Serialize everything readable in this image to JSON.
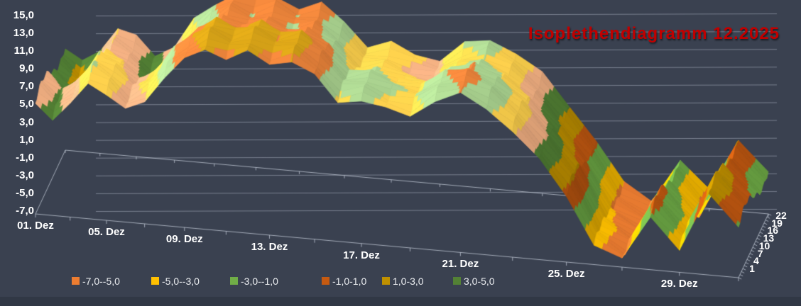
{
  "title": "Isoplethendiagramm 12.2025",
  "colors": {
    "background": "#3A4150",
    "page": "#333B48",
    "title": "#C00000",
    "gridline": "#ADB5C3",
    "axis_line": "#BEC5D2",
    "label": "#FFFFFF"
  },
  "chart_data": {
    "type": "surface",
    "title": "Isoplethendiagramm 12.2025",
    "x_axis": {
      "tick_labels": [
        "01. Dez",
        "05. Dez",
        "09. Dez",
        "13. Dez",
        "17. Dez",
        "21. Dez",
        "25. Dez",
        "29. Dez"
      ],
      "tick_days": [
        1,
        5,
        9,
        13,
        17,
        21,
        25,
        29
      ],
      "days_total": 31
    },
    "value_axis": {
      "tick_labels": [
        "15,0",
        "13,0",
        "11,0",
        "9,0",
        "7,0",
        "5,0",
        "3,0",
        "1,0",
        "-1,0",
        "-3,0",
        "-5,0",
        "-7,0"
      ],
      "min": -7,
      "max": 15,
      "band_size": 2
    },
    "depth_axis": {
      "tick_labels": [
        "22",
        "19",
        "16",
        "13",
        "10",
        "7",
        "4",
        "1"
      ],
      "hours": [
        1,
        4,
        7,
        10,
        13,
        16,
        19,
        22
      ]
    },
    "legend": [
      {
        "label": "-7,0--5,0",
        "color": "#ED7D31"
      },
      {
        "label": "-5,0--3,0",
        "color": "#FFC000"
      },
      {
        "label": "-3,0--1,0",
        "color": "#70AD47"
      },
      {
        "label": "-1,0-1,0",
        "color": "#C55A11"
      },
      {
        "label": "1,0-3,0",
        "color": "#BF9000"
      },
      {
        "label": "3,0-5,0",
        "color": "#538135"
      }
    ],
    "band_colors": [
      "#ED7D31",
      "#FFC000",
      "#70AD47",
      "#C55A11",
      "#BF9000",
      "#538135",
      "#F4B183",
      "#FFD24D",
      "#A9D18E",
      "#E8823A",
      "#D4A017"
    ],
    "daily_mean_temp": [
      5.2,
      3.6,
      5.2,
      8.0,
      7.0,
      5.2,
      6.5,
      9.5,
      11.5,
      13.0,
      12.2,
      13.0,
      12.0,
      12.6,
      11.0,
      8.4,
      8.9,
      8.0,
      7.6,
      9.6,
      10.4,
      9.2,
      7.0,
      3.8,
      0.2,
      -4.8,
      -6.4,
      -1.2,
      -4.6,
      1.6,
      -1.5
    ],
    "diurnal_amplitude": [
      1.2,
      1.2,
      1.2,
      1.2,
      1.2,
      1.2,
      1.2,
      1.2,
      1.2,
      1.2,
      1.2,
      1.2,
      1.2,
      1.2,
      1.2,
      1.2,
      1.2,
      1.2,
      1.2,
      1.2,
      1.2,
      1.2,
      1.2,
      1.2,
      1.2,
      0.6,
      0.5,
      1.0,
      1.0,
      1.0,
      1.2
    ],
    "diurnal_peak_hour": 6
  }
}
